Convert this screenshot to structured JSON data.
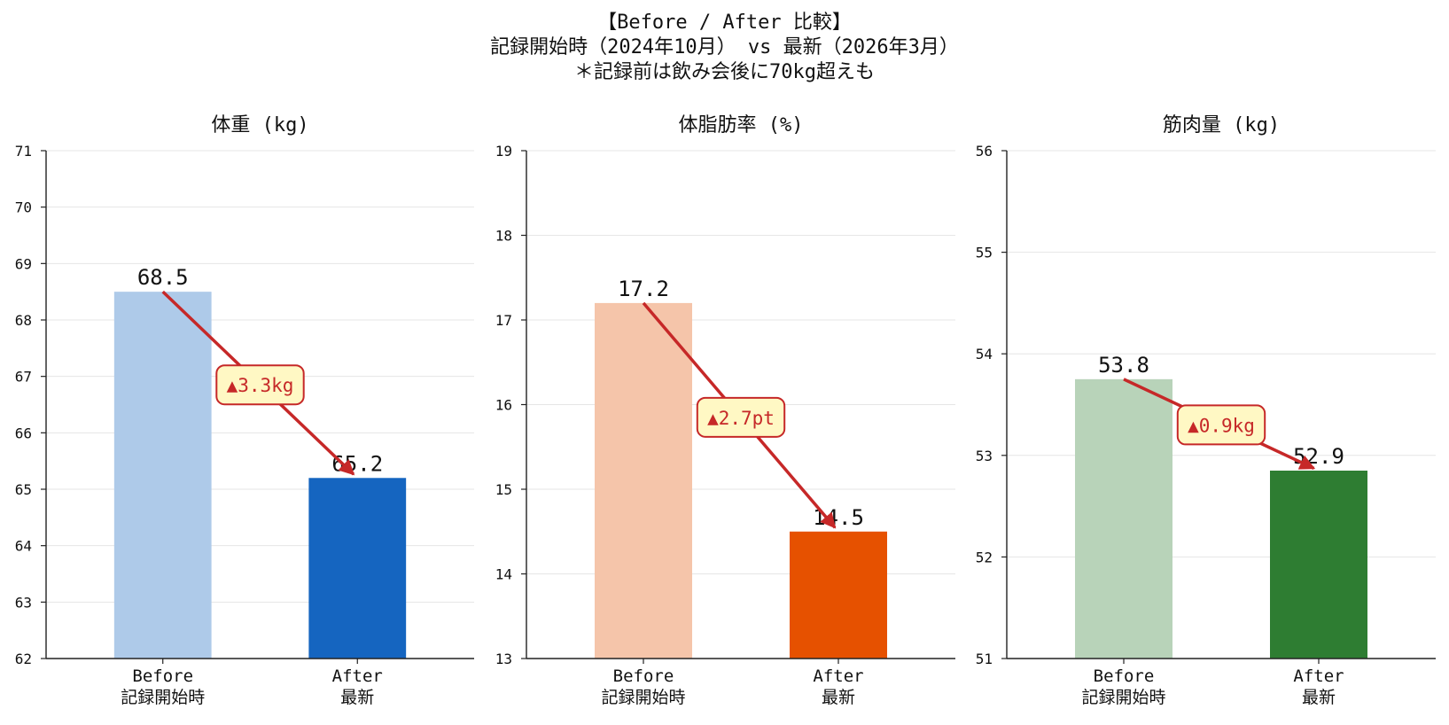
{
  "title_lines": [
    "【Before / After 比較】",
    "記録開始時（2024年10月） vs 最新（2026年3月）",
    "＊記録前は飲み会後に70kg超えも"
  ],
  "colors": {
    "arrow": "#c62828",
    "annotation_face": "#fff8c4",
    "annotation_edge": "#c62828",
    "grid": "#e6e6e6",
    "axis": "#222222"
  },
  "chart_data": [
    {
      "type": "bar",
      "title": "体重 (kg)",
      "categories": [
        [
          "Before",
          "記録開始時"
        ],
        [
          "After",
          "最新"
        ]
      ],
      "values": [
        68.5,
        65.2
      ],
      "value_labels": [
        "68.5",
        "65.2"
      ],
      "colors": [
        "#aecae9",
        "#1565c0"
      ],
      "ylim": [
        62,
        71
      ],
      "yticks": [
        "62",
        "63",
        "64",
        "65",
        "66",
        "67",
        "68",
        "69",
        "70",
        "71"
      ],
      "grid": true,
      "annotation": "▲3.3kg"
    },
    {
      "type": "bar",
      "title": "体脂肪率 (%)",
      "categories": [
        [
          "Before",
          "記録開始時"
        ],
        [
          "After",
          "最新"
        ]
      ],
      "values": [
        17.2,
        14.5
      ],
      "value_labels": [
        "17.2",
        "14.5"
      ],
      "colors": [
        "#f5c5aa",
        "#e65100"
      ],
      "ylim": [
        13,
        19
      ],
      "yticks": [
        "13",
        "14",
        "15",
        "16",
        "17",
        "18",
        "19"
      ],
      "grid": true,
      "annotation": "▲2.7pt"
    },
    {
      "type": "bar",
      "title": "筋肉量 (kg)",
      "categories": [
        [
          "Before",
          "記録開始時"
        ],
        [
          "After",
          "最新"
        ]
      ],
      "values": [
        53.75,
        52.85
      ],
      "value_labels": [
        "53.8",
        "52.9"
      ],
      "colors": [
        "#b8d3b9",
        "#2e7d32"
      ],
      "ylim": [
        51,
        56
      ],
      "yticks": [
        "51",
        "52",
        "53",
        "54",
        "55",
        "56"
      ],
      "grid": true,
      "annotation": "▲0.9kg"
    }
  ]
}
